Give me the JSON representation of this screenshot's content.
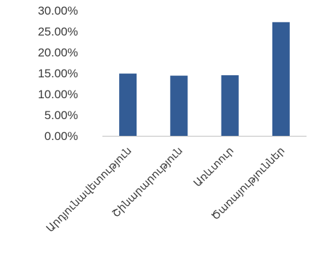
{
  "chart_data": {
    "type": "bar",
    "title": "",
    "xlabel": "",
    "ylabel": "",
    "categories": [
      "Արդյունավետություն",
      "Շինարարություն",
      "Առևտուր",
      "Ծառայություններ"
    ],
    "values": [
      0.149,
      0.144,
      0.145,
      0.272
    ],
    "ylim": [
      0,
      0.3
    ],
    "yticks": [
      "0.00%",
      "5.00%",
      "10.00%",
      "15.00%",
      "20.00%",
      "25.00%",
      "30.00%"
    ],
    "grid": false,
    "legend": "none",
    "bar_color": "#335c95",
    "axis_color": "#bfbfbf"
  }
}
